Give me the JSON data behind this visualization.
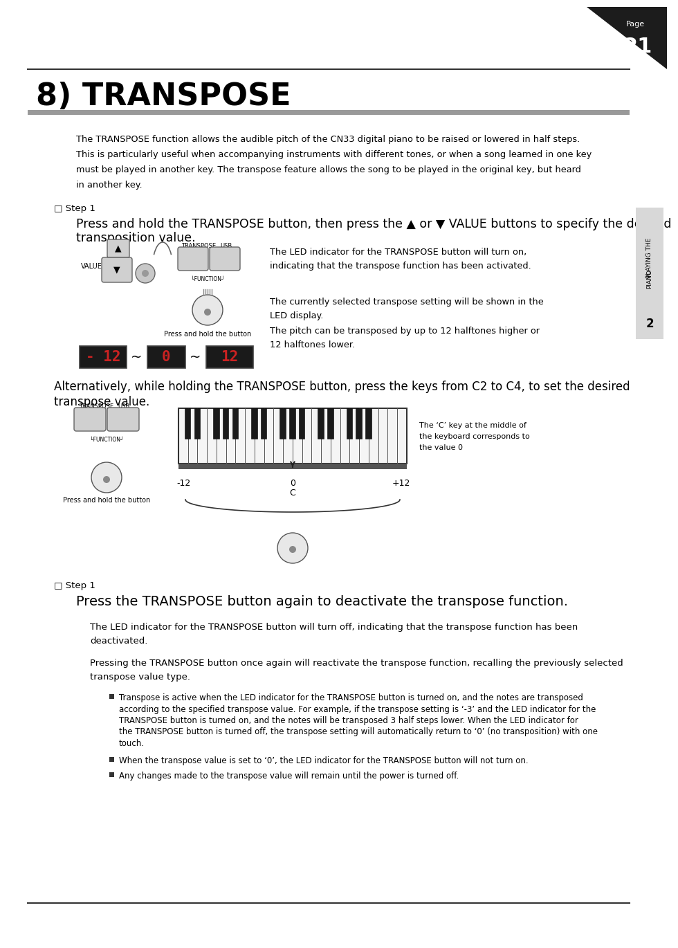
{
  "page_number": "21",
  "page_label": "Page",
  "title": "8) TRANSPOSE",
  "bg_color": "#ffffff",
  "text_color": "#000000",
  "intro_lines": [
    "The TRANSPOSE function allows the audible pitch of the CN33 digital piano to be raised or lowered in half steps.",
    "This is particularly useful when accompanying instruments with different tones, or when a song learned in one key",
    "must be played in another key. The transpose feature allows the song to be played in the original key, but heard",
    "in another key."
  ],
  "step1a_label": "□ Step 1",
  "step1a_line1": "Press and hold the TRANSPOSE button, then press the ▲ or ▼ VALUE buttons to specify the desired",
  "step1a_line2": "transposition value.",
  "led_text1_line1": "The LED indicator for the TRANSPOSE button will turn on,",
  "led_text1_line2": "indicating that the transpose function has been activated.",
  "led_text2_line1": "The currently selected transpose setting will be shown in the",
  "led_text2_line2": "LED display.",
  "led_text2_line3": "The pitch can be transposed by up to 12 halftones higher or",
  "led_text2_line4": "12 halftones lower.",
  "press_hold": "Press and hold the button",
  "alt_line1": "Alternatively, while holding the TRANSPOSE button, press the keys from C2 to C4, to set the desired",
  "alt_line2": "transpose value.",
  "kbd_note_line1": "The ‘C’ key at the middle of",
  "kbd_note_line2": "the keyboard corresponds to",
  "kbd_note_line3": "the value 0",
  "step1b_label": "□ Step 1",
  "step1b_heading": "Press the TRANSPOSE button again to deactivate the transpose function.",
  "body1_line1": "The LED indicator for the TRANSPOSE button will turn off, indicating that the transpose function has been",
  "body1_line2": "deactivated.",
  "body2_line1": "Pressing the TRANSPOSE button once again will reactivate the transpose function, recalling the previously selected",
  "body2_line2": "transpose value type.",
  "b1_lines": [
    "Transpose is active when the LED indicator for the TRANSPOSE button is turned on, and the notes are transposed",
    "according to the specified transpose value. For example, if the transpose setting is ‘-3’ and the LED indicator for the",
    "TRANSPOSE button is turned on, and the notes will be transposed 3 half steps lower. When the LED indicator for",
    "the TRANSPOSE button is turned off, the transpose setting will automatically return to ‘0’ (no transposition) with one",
    "touch."
  ],
  "b2": "When the transpose value is set to ‘0’, the LED indicator for the TRANSPOSE button will not turn on.",
  "b3": "Any changes made to the transpose value will remain until the power is turned off.",
  "sidebar_text1": "PLAYING THE",
  "sidebar_text2": "PIANO",
  "sidebar_num": "2"
}
